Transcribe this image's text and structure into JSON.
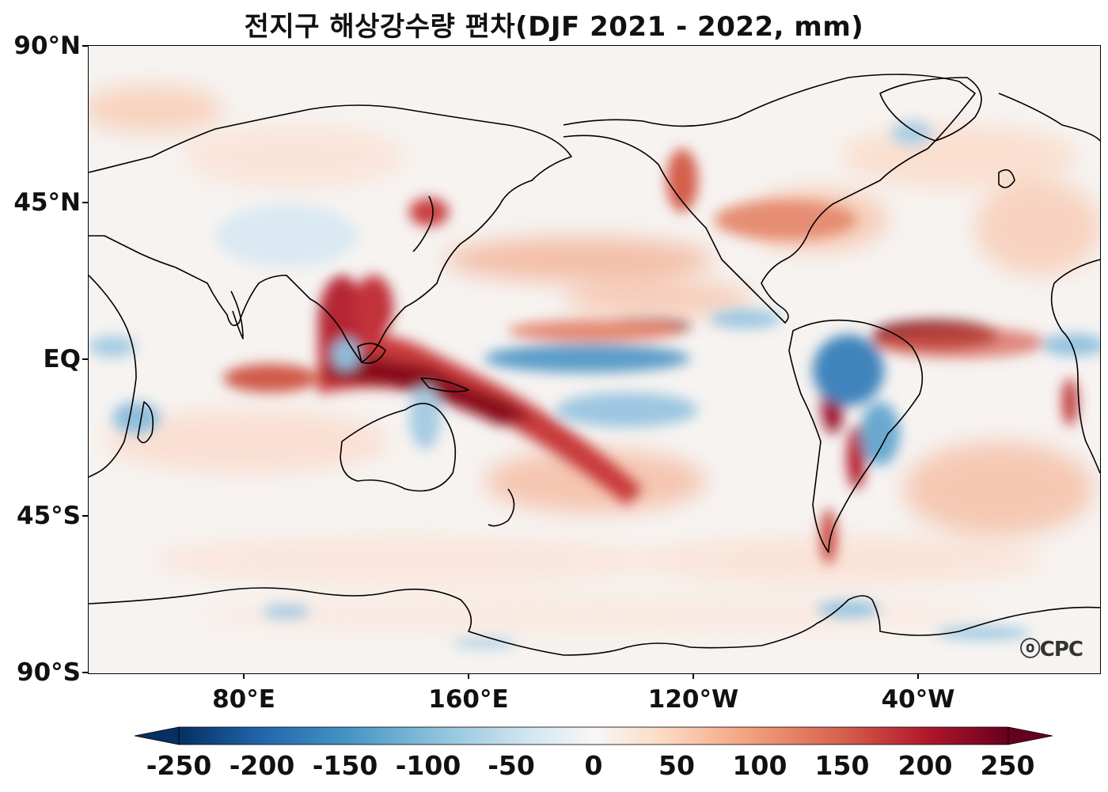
{
  "title": "전지구 해상강수량 편차(DJF 2021 - 2022, mm)",
  "map": {
    "projection": "equirectangular",
    "central_longitude": 180,
    "variable": "precipitation anomaly",
    "units": "mm",
    "lat_ticks": [
      "90°N",
      "45°N",
      "EQ",
      "45°S",
      "90°S"
    ],
    "lon_ticks": [
      "80°E",
      "160°E",
      "120°W",
      "40°W"
    ],
    "colormap": "RdBu_r",
    "ocean_base_color": "#f6f3f1",
    "coastline_color": "#000000",
    "watermark": "ⓞCPC"
  },
  "colorbar": {
    "min": -250,
    "max": 250,
    "extend": "both",
    "tick_labels": [
      "-250",
      "-200",
      "-150",
      "-100",
      "-50",
      "0",
      "50",
      "100",
      "150",
      "200",
      "250"
    ],
    "colors": [
      "#053061",
      "#2166ac",
      "#4393c3",
      "#92c5de",
      "#d1e5f0",
      "#f7f7f7",
      "#fddbc7",
      "#f4a582",
      "#d6604d",
      "#b2182b",
      "#67001f"
    ]
  }
}
